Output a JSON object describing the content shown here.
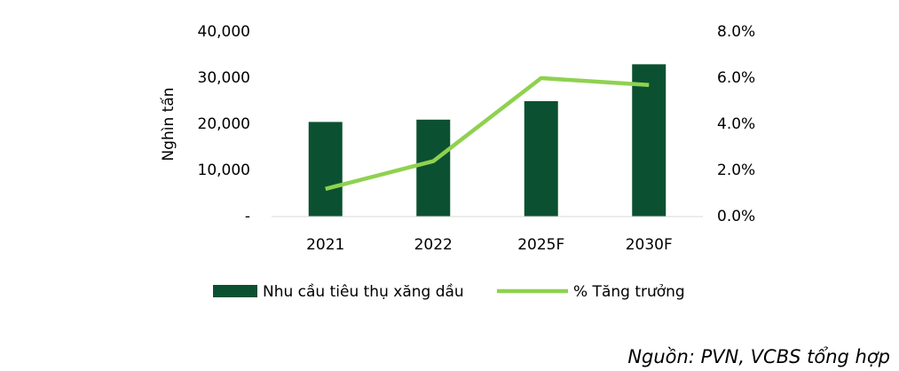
{
  "chart_data": {
    "type": "bar_line",
    "y_label": "Nghìn tấn",
    "source": "Nguồn: PVN, VCBS tổng hợp",
    "categories": [
      "2021",
      "2022",
      "2025F",
      "2030F"
    ],
    "series": [
      {
        "name": "Nhu cầu tiêu thụ xăng dầu",
        "type": "bar",
        "color": "#0b5131",
        "values": [
          20500,
          21000,
          25000,
          33000
        ]
      },
      {
        "name": "% Tăng trưởng",
        "type": "line",
        "color": "#8fd14f",
        "axis": "y2",
        "values": [
          1.2,
          2.4,
          6.0,
          5.7
        ]
      }
    ],
    "ylim": [
      0,
      40000
    ],
    "yticks": [
      {
        "value": 0,
        "label": "-"
      },
      {
        "value": 10000,
        "label": "10,000"
      },
      {
        "value": 20000,
        "label": "20,000"
      },
      {
        "value": 30000,
        "label": "30,000"
      },
      {
        "value": 40000,
        "label": "40,000"
      }
    ],
    "y2lim": [
      0,
      8
    ],
    "y2ticks": [
      {
        "value": 0,
        "label": "0.0%"
      },
      {
        "value": 2,
        "label": "2.0%"
      },
      {
        "value": 4,
        "label": "4.0%"
      },
      {
        "value": 6,
        "label": "6.0%"
      },
      {
        "value": 8,
        "label": "8.0%"
      }
    ],
    "legend": "bottom"
  }
}
